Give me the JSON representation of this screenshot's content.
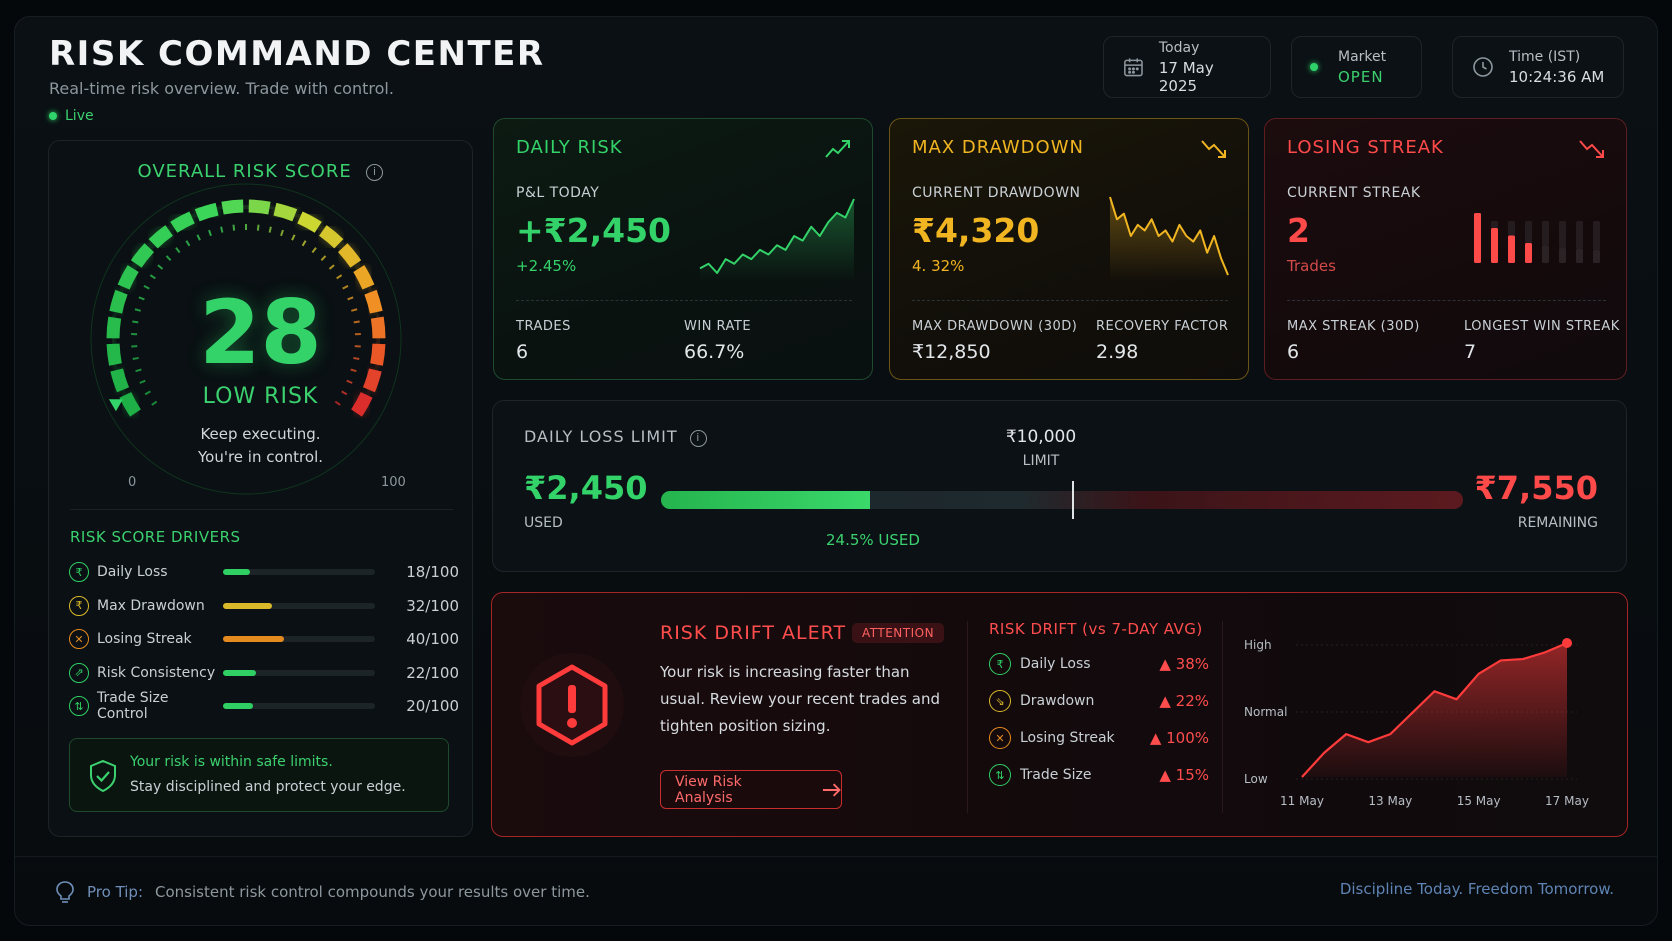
{
  "header": {
    "title": "RISK COMMAND CENTER",
    "subtitle": "Real-time risk overview. Trade with control.",
    "live_label": "Live",
    "today_label": "Today",
    "today_value": "17 May 2025",
    "market_label": "Market",
    "market_value": "OPEN",
    "time_label": "Time (IST)",
    "time_value": "10:24:36 AM"
  },
  "gauge": {
    "title": "OVERALL RISK SCORE",
    "score": "28",
    "score_value": 28,
    "level": "LOW RISK",
    "message_line1": "Keep executing.",
    "message_line2": "You're in control.",
    "min": "0",
    "max": "100"
  },
  "drivers": {
    "title": "RISK SCORE DRIVERS",
    "items": [
      {
        "name": "Daily Loss",
        "value": "18/100",
        "level": 18,
        "icon": "rupee-icon",
        "color": "#2fcf63"
      },
      {
        "name": "Max Drawdown",
        "value": "32/100",
        "level": 32,
        "icon": "rupee-icon",
        "color": "#d9b92a"
      },
      {
        "name": "Losing Streak",
        "value": "40/100",
        "level": 40,
        "icon": "streak-icon",
        "color": "#e58a1f"
      },
      {
        "name": "Risk Consistency",
        "value": "22/100",
        "level": 22,
        "icon": "consistency-icon",
        "color": "#2fcf63"
      },
      {
        "name": "Trade Size Control",
        "value": "20/100",
        "level": 20,
        "icon": "trade-size-icon",
        "color": "#2fcf63"
      }
    ]
  },
  "safe": {
    "line1": "Your risk is within safe limits.",
    "line2": "Stay disciplined and protect your edge."
  },
  "daily_risk": {
    "title": "DAILY RISK",
    "sub": "P&L TODAY",
    "value": "+₹2,450",
    "pct": "+2.45%",
    "f1_label": "TRADES",
    "f1_value": "6",
    "f2_label": "WIN RATE",
    "f2_value": "66.7%",
    "color": "#33d36a",
    "spark": [
      2,
      3,
      1,
      4,
      3,
      5,
      4,
      6,
      5,
      7,
      6,
      9,
      8,
      11,
      9,
      12,
      14,
      13,
      17
    ]
  },
  "max_drawdown": {
    "title": "MAX DRAWDOWN",
    "sub": "CURRENT DRAWDOWN",
    "value": "₹4,320",
    "pct": "4. 32%",
    "f1_label": "MAX DRAWDOWN (30D)",
    "f1_value": "₹12,850",
    "f2_label": "RECOVERY FACTOR",
    "f2_value": "2.98",
    "color": "#f0b521",
    "spark": [
      16,
      12,
      13,
      9,
      11,
      10,
      12,
      9,
      10,
      8,
      11,
      9,
      8,
      10,
      6,
      9,
      5,
      2
    ]
  },
  "losing_streak": {
    "title": "LOSING STREAK",
    "sub": "CURRENT STREAK",
    "value": "2",
    "pct": "Trades",
    "f1_label": "MAX STREAK (30D)",
    "f1_value": "6",
    "f2_label": "LONGEST WIN STREAK",
    "f2_value": "7",
    "color": "#ff4a4a",
    "bars": [
      1,
      0.7,
      0.55,
      0.4,
      0.35,
      0.3,
      0.28,
      0.26
    ],
    "bars_active": [
      true,
      true,
      true,
      true,
      false,
      false,
      false,
      false
    ]
  },
  "daily_loss_limit": {
    "title": "DAILY LOSS LIMIT",
    "used_value": "₹2,450",
    "used_label": "USED",
    "limit_value": "₹10,000",
    "limit_label": "LIMIT",
    "used_pct_text": "24.5% USED",
    "used_fraction": 0.245,
    "remaining_value": "₹7,550",
    "remaining_label": "REMAINING"
  },
  "risk_drift": {
    "alert_title": "RISK DRIFT ALERT",
    "badge": "ATTENTION",
    "text": "Your risk is increasing faster than usual. Review your recent trades and tighten position sizing.",
    "button": "View Risk Analysis",
    "drift_title": "RISK DRIFT (vs 7-DAY AVG)",
    "rows": [
      {
        "name": "Daily Loss",
        "change": "▲ 38%",
        "icon": "rupee-icon",
        "color": "#2fcf63"
      },
      {
        "name": "Drawdown",
        "change": "▲ 22%",
        "icon": "drawdown-icon",
        "color": "#d9b92a"
      },
      {
        "name": "Losing Streak",
        "change": "▲ 100%",
        "icon": "streak-icon",
        "color": "#e58a1f"
      },
      {
        "name": "Trade Size",
        "change": "▲ 15%",
        "icon": "trade-size-icon",
        "color": "#2fcf63"
      }
    ]
  },
  "chart_data": {
    "type": "area",
    "title": "",
    "xlabel": "",
    "ylabel": "",
    "y_tick_labels": [
      "High",
      "Normal",
      "Low"
    ],
    "x_tick_labels": [
      "11 May",
      "13 May",
      "15 May",
      "17 May"
    ],
    "x": [
      "11 May",
      "11.5 May",
      "12 May",
      "12.5 May",
      "13 May",
      "13.5 May",
      "14 May",
      "14.5 May",
      "15 May",
      "15.5 May",
      "16 May",
      "16.5 May",
      "17 May"
    ],
    "series": [
      {
        "values": [
          0.0,
          0.18,
          0.32,
          0.26,
          0.32,
          0.48,
          0.64,
          0.58,
          0.77,
          0.87,
          0.88,
          0.93,
          1.0
        ]
      }
    ],
    "ylim": [
      0,
      1
    ],
    "color": "#ff3b3b"
  },
  "footer": {
    "tip_label": "Pro Tip:",
    "tip_text": "Consistent risk control compounds your results over time.",
    "slogan": "Discipline Today. Freedom Tomorrow."
  }
}
